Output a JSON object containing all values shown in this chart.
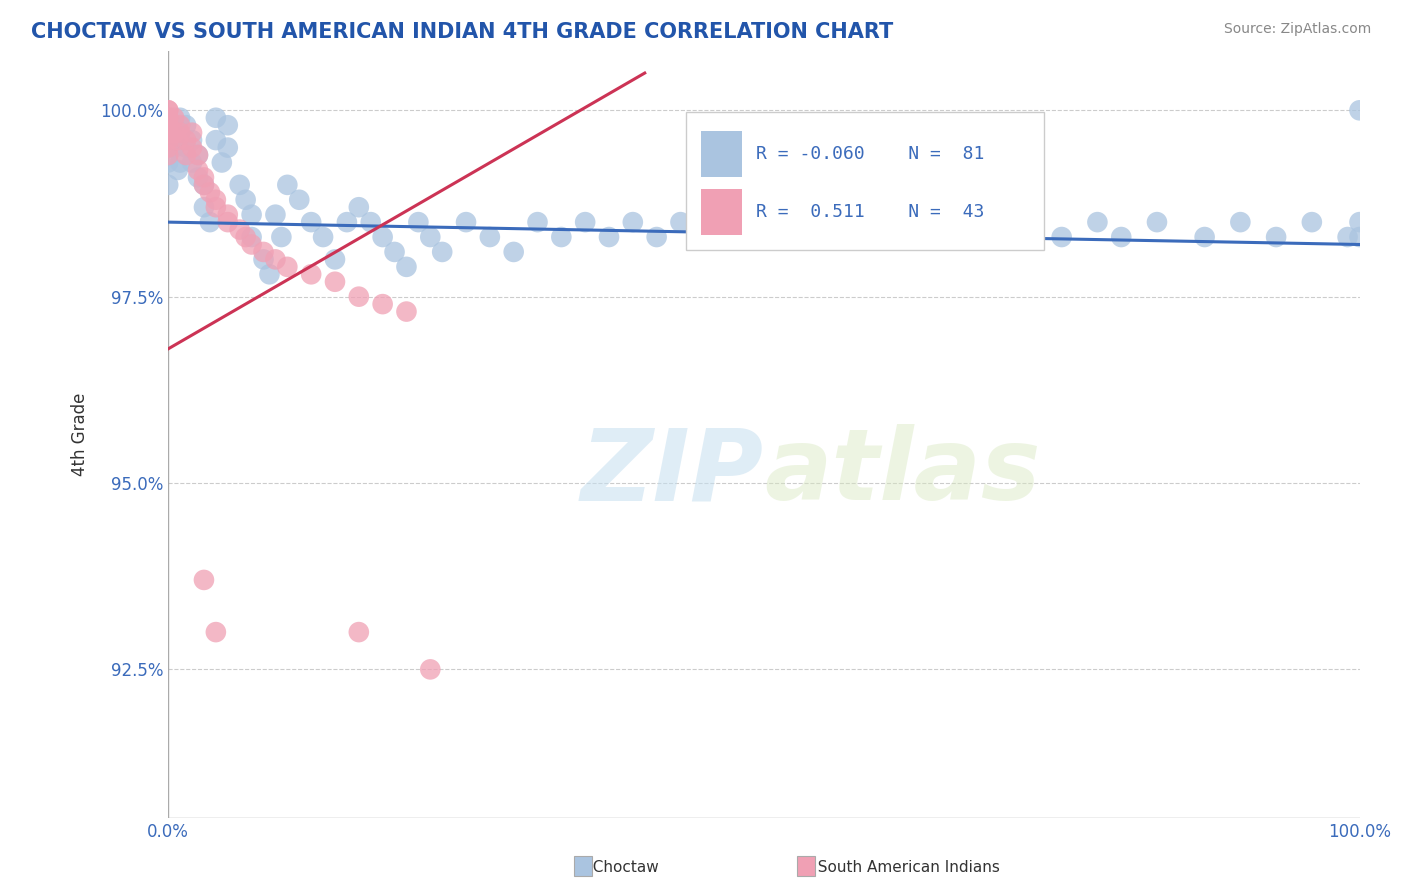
{
  "title": "CHOCTAW VS SOUTH AMERICAN INDIAN 4TH GRADE CORRELATION CHART",
  "source": "Source: ZipAtlas.com",
  "ylabel": "4th Grade",
  "watermark_zip": "ZIP",
  "watermark_atlas": "atlas",
  "xlim": [
    0.0,
    1.0
  ],
  "ylim": [
    0.905,
    1.008
  ],
  "yticks": [
    0.925,
    0.95,
    0.975,
    1.0
  ],
  "ytick_labels": [
    "92.5%",
    "95.0%",
    "97.5%",
    "100.0%"
  ],
  "xticks": [
    0.0,
    0.25,
    0.5,
    0.75,
    1.0
  ],
  "xtick_labels": [
    "0.0%",
    "",
    "",
    "",
    "100.0%"
  ],
  "blue_color": "#aac4e0",
  "pink_color": "#f0a0b4",
  "blue_line_color": "#3b6bbb",
  "pink_line_color": "#cc3355",
  "legend_text_color": "#3b6bbb",
  "title_color": "#2255aa",
  "source_color": "#888888",
  "background_color": "#ffffff",
  "grid_color": "#cccccc",
  "blue_line_x0": 0.0,
  "blue_line_y0": 0.985,
  "blue_line_x1": 1.0,
  "blue_line_y1": 0.982,
  "pink_line_x0": 0.0,
  "pink_line_y0": 0.968,
  "pink_line_x1": 0.4,
  "pink_line_y1": 1.005,
  "blue_points_x": [
    0.0,
    0.0,
    0.0,
    0.0,
    0.0,
    0.005,
    0.005,
    0.008,
    0.01,
    0.01,
    0.01,
    0.015,
    0.015,
    0.02,
    0.02,
    0.025,
    0.025,
    0.03,
    0.03,
    0.035,
    0.04,
    0.04,
    0.045,
    0.05,
    0.05,
    0.06,
    0.065,
    0.07,
    0.07,
    0.08,
    0.085,
    0.09,
    0.095,
    0.1,
    0.11,
    0.12,
    0.13,
    0.14,
    0.15,
    0.16,
    0.17,
    0.18,
    0.19,
    0.2,
    0.21,
    0.22,
    0.23,
    0.25,
    0.27,
    0.29,
    0.31,
    0.33,
    0.35,
    0.37,
    0.39,
    0.41,
    0.43,
    0.46,
    0.48,
    0.5,
    0.53,
    0.55,
    0.58,
    0.6,
    0.63,
    0.65,
    0.68,
    0.7,
    0.72,
    0.75,
    0.78,
    0.8,
    0.83,
    0.87,
    0.9,
    0.93,
    0.96,
    0.99,
    1.0,
    1.0,
    1.0
  ],
  "blue_points_y": [
    0.999,
    0.997,
    0.995,
    0.993,
    0.99,
    0.998,
    0.995,
    0.992,
    0.999,
    0.996,
    0.993,
    0.998,
    0.995,
    0.996,
    0.993,
    0.994,
    0.991,
    0.99,
    0.987,
    0.985,
    0.999,
    0.996,
    0.993,
    0.998,
    0.995,
    0.99,
    0.988,
    0.986,
    0.983,
    0.98,
    0.978,
    0.986,
    0.983,
    0.99,
    0.988,
    0.985,
    0.983,
    0.98,
    0.985,
    0.987,
    0.985,
    0.983,
    0.981,
    0.979,
    0.985,
    0.983,
    0.981,
    0.985,
    0.983,
    0.981,
    0.985,
    0.983,
    0.985,
    0.983,
    0.985,
    0.983,
    0.985,
    0.983,
    0.985,
    0.983,
    0.985,
    0.983,
    0.985,
    0.983,
    0.985,
    0.983,
    0.985,
    0.983,
    0.985,
    0.983,
    0.985,
    0.983,
    0.985,
    0.983,
    0.985,
    0.983,
    0.985,
    0.983,
    0.985,
    0.983,
    1.0
  ],
  "pink_points_x": [
    0.0,
    0.0,
    0.0,
    0.0,
    0.0,
    0.0,
    0.0,
    0.0,
    0.0,
    0.0,
    0.005,
    0.005,
    0.008,
    0.01,
    0.01,
    0.015,
    0.015,
    0.02,
    0.02,
    0.025,
    0.025,
    0.03,
    0.03,
    0.035,
    0.04,
    0.04,
    0.05,
    0.05,
    0.06,
    0.065,
    0.07,
    0.08,
    0.09,
    0.1,
    0.12,
    0.14,
    0.16,
    0.18,
    0.2,
    0.03,
    0.04,
    0.16,
    0.22
  ],
  "pink_points_y": [
    1.0,
    1.0,
    0.999,
    0.998,
    0.999,
    0.998,
    0.997,
    0.996,
    0.995,
    0.994,
    0.999,
    0.997,
    0.996,
    0.998,
    0.997,
    0.996,
    0.994,
    0.997,
    0.995,
    0.994,
    0.992,
    0.991,
    0.99,
    0.989,
    0.988,
    0.987,
    0.986,
    0.985,
    0.984,
    0.983,
    0.982,
    0.981,
    0.98,
    0.979,
    0.978,
    0.977,
    0.975,
    0.974,
    0.973,
    0.937,
    0.93,
    0.93,
    0.925
  ]
}
